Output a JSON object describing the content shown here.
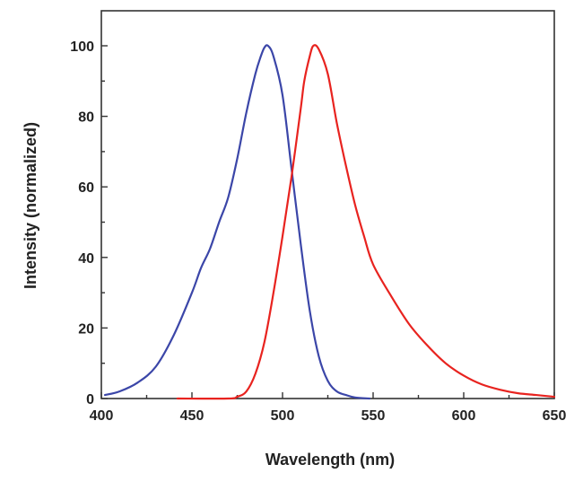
{
  "chart_data": {
    "type": "line",
    "title": "",
    "xlabel": "Wavelength (nm)",
    "ylabel": "Intensity (normalized)",
    "xlim": [
      400,
      650
    ],
    "ylim": [
      0,
      110
    ],
    "x_ticks": [
      400,
      450,
      500,
      550,
      600,
      650
    ],
    "y_ticks": [
      0,
      20,
      40,
      60,
      80,
      100
    ],
    "grid": false,
    "series": [
      {
        "color": "#3b46a8",
        "x": [
          402,
          410,
          420,
          430,
          440,
          450,
          455,
          460,
          465,
          470,
          475,
          480,
          485,
          488,
          490,
          492,
          495,
          500,
          505,
          510,
          515,
          520,
          525,
          530,
          535,
          540,
          548
        ],
        "y": [
          1,
          2,
          4.5,
          9,
          18,
          30,
          37,
          42.5,
          50,
          57,
          68,
          81,
          92,
          97,
          99.5,
          100,
          97,
          86,
          65,
          44,
          25,
          12,
          5,
          2,
          1,
          0.3,
          0
        ]
      },
      {
        "color": "#e8231f",
        "x": [
          442,
          470,
          475,
          480,
          485,
          490,
          495,
          500,
          505,
          510,
          512,
          515,
          517,
          520,
          525,
          530,
          535,
          540,
          545,
          550,
          560,
          570,
          580,
          590,
          600,
          610,
          620,
          630,
          640,
          650
        ],
        "y": [
          0,
          0,
          0.5,
          2,
          7,
          16,
          30,
          46,
          63,
          82,
          90,
          97,
          100,
          99,
          92,
          78,
          66,
          55,
          46,
          38,
          29,
          21,
          15,
          10,
          6.5,
          4,
          2.5,
          1.5,
          1,
          0.5
        ]
      }
    ]
  }
}
